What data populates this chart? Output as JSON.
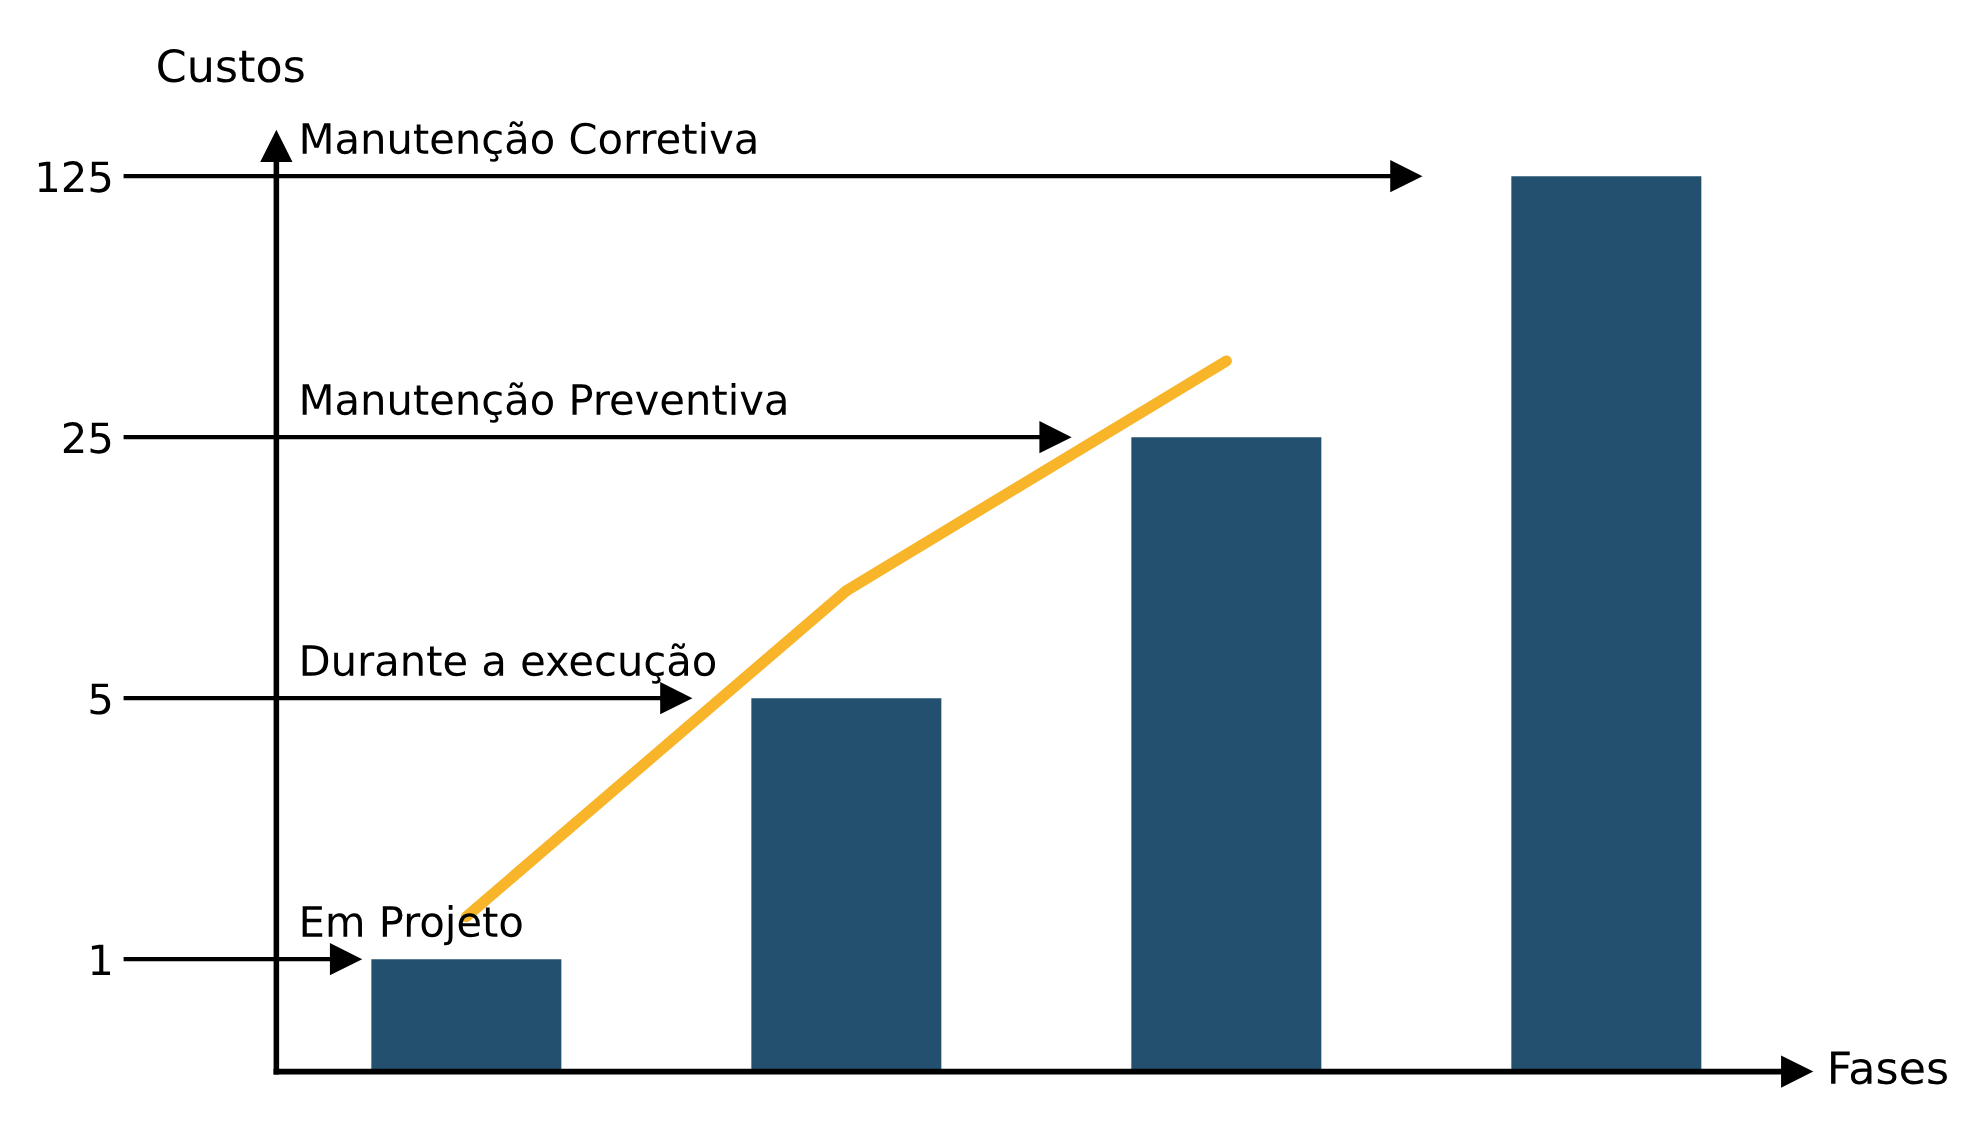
{
  "chart_data": {
    "type": "bar",
    "ylabel": "Custos",
    "categories": [
      null,
      null,
      null,
      null
    ],
    "log": true,
    "ylim": [
      0.5,
      150
    ],
    "yticks": [
      1,
      5,
      25,
      125
    ],
    "grid": false,
    "legend": false,
    "series": [
      {
        "color": "#22506e",
        "values": [
          1,
          5,
          25,
          125
        ]
      },
      {
        "type": "line",
        "color": "#f9b52a",
        "values": [
          1.3,
          9.7,
          40,
          null
        ]
      }
    ],
    "annotations": [
      "Fases"
    ],
    "ref_lines": [
      {
        "axis": "y",
        "value": 1,
        "label": "Em Projeto"
      },
      {
        "axis": "y",
        "value": 5,
        "label": "Durante a execução"
      },
      {
        "axis": "y",
        "value": 25,
        "label": "Manutenção Preventiva"
      },
      {
        "axis": "y",
        "value": 125,
        "label": "Manutenção Corretiva"
      }
    ]
  }
}
